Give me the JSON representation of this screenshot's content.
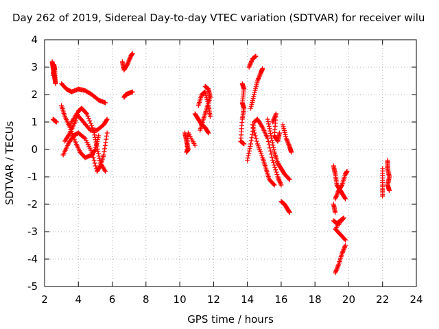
{
  "chart_data": {
    "type": "scatter",
    "title": "Day 262 of 2019, Sidereal Day-to-day VTEC variation (SDTVAR) for receiver wilu",
    "xlabel": "GPS time / hours",
    "ylabel": "SDTVAR / TECUs",
    "xlim": [
      2,
      24
    ],
    "ylim": [
      -5,
      4
    ],
    "xticks": [
      2,
      4,
      6,
      8,
      10,
      12,
      14,
      16,
      18,
      20,
      22,
      24
    ],
    "yticks": [
      -5,
      -4,
      -3,
      -2,
      -1,
      0,
      1,
      2,
      3,
      4
    ],
    "xtick_labels": [
      "2",
      "4",
      "6",
      "8",
      "10",
      "12",
      "14",
      "16",
      "18",
      "20",
      "22",
      "24"
    ],
    "ytick_labels": [
      "-5",
      "-4",
      "-3",
      "-2",
      "-1",
      "0",
      "1",
      "2",
      "3",
      "4"
    ],
    "marker": "+",
    "color": "#ff0000",
    "series": [
      {
        "name": "s1",
        "points": [
          [
            2.45,
            3.2
          ],
          [
            2.5,
            3.0
          ],
          [
            2.55,
            2.8
          ],
          [
            2.6,
            2.6
          ],
          [
            2.65,
            2.4
          ],
          [
            2.6,
            2.9
          ],
          [
            2.55,
            3.1
          ],
          [
            2.5,
            2.7
          ]
        ]
      },
      {
        "name": "s2",
        "points": [
          [
            2.5,
            1.1
          ],
          [
            2.6,
            1.05
          ],
          [
            2.7,
            1.0
          ]
        ]
      },
      {
        "name": "s3",
        "points": [
          [
            3.0,
            2.4
          ],
          [
            3.3,
            2.2
          ],
          [
            3.6,
            2.1
          ],
          [
            4.0,
            2.2
          ],
          [
            4.4,
            2.15
          ],
          [
            4.8,
            2.0
          ],
          [
            5.2,
            1.8
          ],
          [
            5.6,
            1.7
          ]
        ]
      },
      {
        "name": "s4",
        "points": [
          [
            3.0,
            1.6
          ],
          [
            3.2,
            1.2
          ],
          [
            3.5,
            0.8
          ],
          [
            3.8,
            0.3
          ],
          [
            4.1,
            -0.1
          ],
          [
            4.4,
            -0.3
          ],
          [
            4.8,
            -0.2
          ],
          [
            5.0,
            0.0
          ],
          [
            5.2,
            0.5
          ]
        ]
      },
      {
        "name": "s5",
        "points": [
          [
            3.2,
            0.3
          ],
          [
            3.5,
            0.6
          ],
          [
            3.8,
            1.0
          ],
          [
            4.0,
            1.4
          ],
          [
            4.2,
            1.5
          ],
          [
            4.5,
            1.3
          ],
          [
            4.9,
            0.7
          ],
          [
            5.1,
            0.1
          ],
          [
            5.3,
            -0.5
          ],
          [
            5.6,
            -0.8
          ]
        ]
      },
      {
        "name": "s6",
        "points": [
          [
            3.1,
            -0.2
          ],
          [
            3.4,
            0.2
          ],
          [
            3.7,
            0.5
          ],
          [
            4.0,
            0.6
          ],
          [
            4.4,
            0.4
          ],
          [
            4.8,
            -0.1
          ],
          [
            5.1,
            -0.8
          ],
          [
            5.3,
            -0.6
          ],
          [
            5.5,
            -0.2
          ],
          [
            5.7,
            0.6
          ]
        ]
      },
      {
        "name": "s7",
        "points": [
          [
            3.5,
            0.9
          ],
          [
            3.9,
            1.3
          ],
          [
            4.3,
            1.0
          ],
          [
            4.7,
            0.7
          ],
          [
            5.1,
            0.7
          ],
          [
            5.5,
            0.9
          ],
          [
            5.7,
            1.1
          ]
        ]
      },
      {
        "name": "s8",
        "points": [
          [
            6.6,
            3.2
          ],
          [
            6.7,
            2.9
          ],
          [
            6.9,
            3.1
          ],
          [
            7.1,
            3.4
          ],
          [
            7.2,
            3.5
          ]
        ]
      },
      {
        "name": "s9",
        "points": [
          [
            6.7,
            1.9
          ],
          [
            6.8,
            2.0
          ],
          [
            7.0,
            2.05
          ],
          [
            7.2,
            2.1
          ]
        ]
      },
      {
        "name": "s10",
        "points": [
          [
            10.3,
            0.6
          ],
          [
            10.4,
            0.3
          ],
          [
            10.5,
            0.0
          ],
          [
            10.4,
            -0.1
          ],
          [
            10.5,
            0.6
          ],
          [
            10.9,
            0.15
          ]
        ]
      },
      {
        "name": "s11",
        "points": [
          [
            10.9,
            1.3
          ],
          [
            11.1,
            1.1
          ],
          [
            11.3,
            0.9
          ],
          [
            11.5,
            0.8
          ],
          [
            11.7,
            0.6
          ]
        ]
      },
      {
        "name": "s12",
        "points": [
          [
            11.2,
            0.7
          ],
          [
            11.4,
            1.1
          ],
          [
            11.6,
            1.5
          ],
          [
            11.8,
            1.9
          ],
          [
            11.7,
            2.2
          ],
          [
            11.5,
            2.3
          ]
        ]
      },
      {
        "name": "s13",
        "points": [
          [
            11.1,
            1.6
          ],
          [
            11.3,
            2.0
          ],
          [
            11.5,
            2.1
          ],
          [
            11.7,
            1.6
          ],
          [
            11.8,
            1.2
          ]
        ]
      },
      {
        "name": "s14",
        "points": [
          [
            13.7,
            2.4
          ],
          [
            13.8,
            2.2
          ],
          [
            13.7,
            1.7
          ],
          [
            13.8,
            1.5
          ],
          [
            13.7,
            1.1
          ],
          [
            13.6,
            0.3
          ],
          [
            13.8,
            0.2
          ]
        ]
      },
      {
        "name": "s15",
        "points": [
          [
            14.1,
            3.0
          ],
          [
            14.3,
            3.3
          ],
          [
            14.5,
            3.4
          ]
        ]
      },
      {
        "name": "s16",
        "points": [
          [
            14.2,
            1.5
          ],
          [
            14.4,
            2.0
          ],
          [
            14.6,
            2.5
          ],
          [
            14.8,
            2.8
          ],
          [
            14.9,
            2.95
          ]
        ]
      },
      {
        "name": "s17",
        "points": [
          [
            14.0,
            -0.4
          ],
          [
            14.2,
            0.2
          ],
          [
            14.4,
            1.0
          ],
          [
            14.6,
            1.1
          ],
          [
            14.9,
            0.8
          ],
          [
            15.2,
            0.4
          ],
          [
            15.5,
            -0.4
          ],
          [
            15.8,
            -1.0
          ],
          [
            16.0,
            -1.3
          ]
        ]
      },
      {
        "name": "s18",
        "points": [
          [
            14.3,
            0.9
          ],
          [
            14.6,
            0.2
          ],
          [
            14.9,
            -0.3
          ],
          [
            15.1,
            -0.7
          ],
          [
            15.3,
            -1.1
          ],
          [
            15.6,
            -1.3
          ]
        ]
      },
      {
        "name": "s19",
        "points": [
          [
            15.2,
            1.1
          ],
          [
            15.4,
            0.5
          ],
          [
            15.6,
            -0.1
          ],
          [
            15.8,
            -0.5
          ],
          [
            16.0,
            -0.7
          ],
          [
            16.2,
            -0.9
          ],
          [
            16.5,
            -1.1
          ]
        ]
      },
      {
        "name": "s20",
        "points": [
          [
            15.5,
            1.0
          ],
          [
            15.7,
            1.3
          ],
          [
            15.6,
            0.5
          ],
          [
            15.8,
            0.3
          ],
          [
            15.9,
            0.6
          ]
        ]
      },
      {
        "name": "s21",
        "points": [
          [
            16.1,
            0.9
          ],
          [
            16.3,
            0.4
          ],
          [
            16.5,
            0.1
          ],
          [
            16.6,
            -0.1
          ]
        ]
      },
      {
        "name": "s22",
        "points": [
          [
            16.0,
            -1.9
          ],
          [
            16.2,
            -2.0
          ],
          [
            16.4,
            -2.2
          ],
          [
            16.5,
            -2.3
          ]
        ]
      },
      {
        "name": "s23",
        "points": [
          [
            19.1,
            -0.6
          ],
          [
            19.2,
            -0.9
          ],
          [
            19.3,
            -1.3
          ],
          [
            19.5,
            -1.5
          ],
          [
            19.6,
            -1.6
          ],
          [
            19.8,
            -1.8
          ]
        ]
      },
      {
        "name": "s24",
        "points": [
          [
            19.2,
            -1.8
          ],
          [
            19.4,
            -1.5
          ],
          [
            19.6,
            -1.3
          ],
          [
            19.8,
            -0.9
          ],
          [
            19.9,
            -0.8
          ]
        ]
      },
      {
        "name": "s25",
        "points": [
          [
            19.1,
            -2.6
          ],
          [
            19.3,
            -2.7
          ],
          [
            19.5,
            -2.6
          ],
          [
            19.7,
            -2.5
          ],
          [
            19.2,
            -2.9
          ],
          [
            19.5,
            -3.1
          ],
          [
            19.8,
            -3.3
          ]
        ]
      },
      {
        "name": "s26",
        "points": [
          [
            19.1,
            -2.0
          ],
          [
            19.2,
            -2.3
          ]
        ]
      },
      {
        "name": "s27",
        "points": [
          [
            19.2,
            -4.5
          ],
          [
            19.4,
            -4.2
          ],
          [
            19.6,
            -3.8
          ],
          [
            19.8,
            -3.5
          ]
        ]
      },
      {
        "name": "s28",
        "points": [
          [
            22.0,
            -0.7
          ],
          [
            22.0,
            -1.3
          ],
          [
            22.0,
            -1.7
          ]
        ]
      },
      {
        "name": "s29",
        "points": [
          [
            22.3,
            -0.4
          ],
          [
            22.3,
            -0.7
          ],
          [
            22.4,
            -1.0
          ],
          [
            22.3,
            -1.3
          ],
          [
            22.4,
            -1.5
          ]
        ]
      }
    ]
  }
}
